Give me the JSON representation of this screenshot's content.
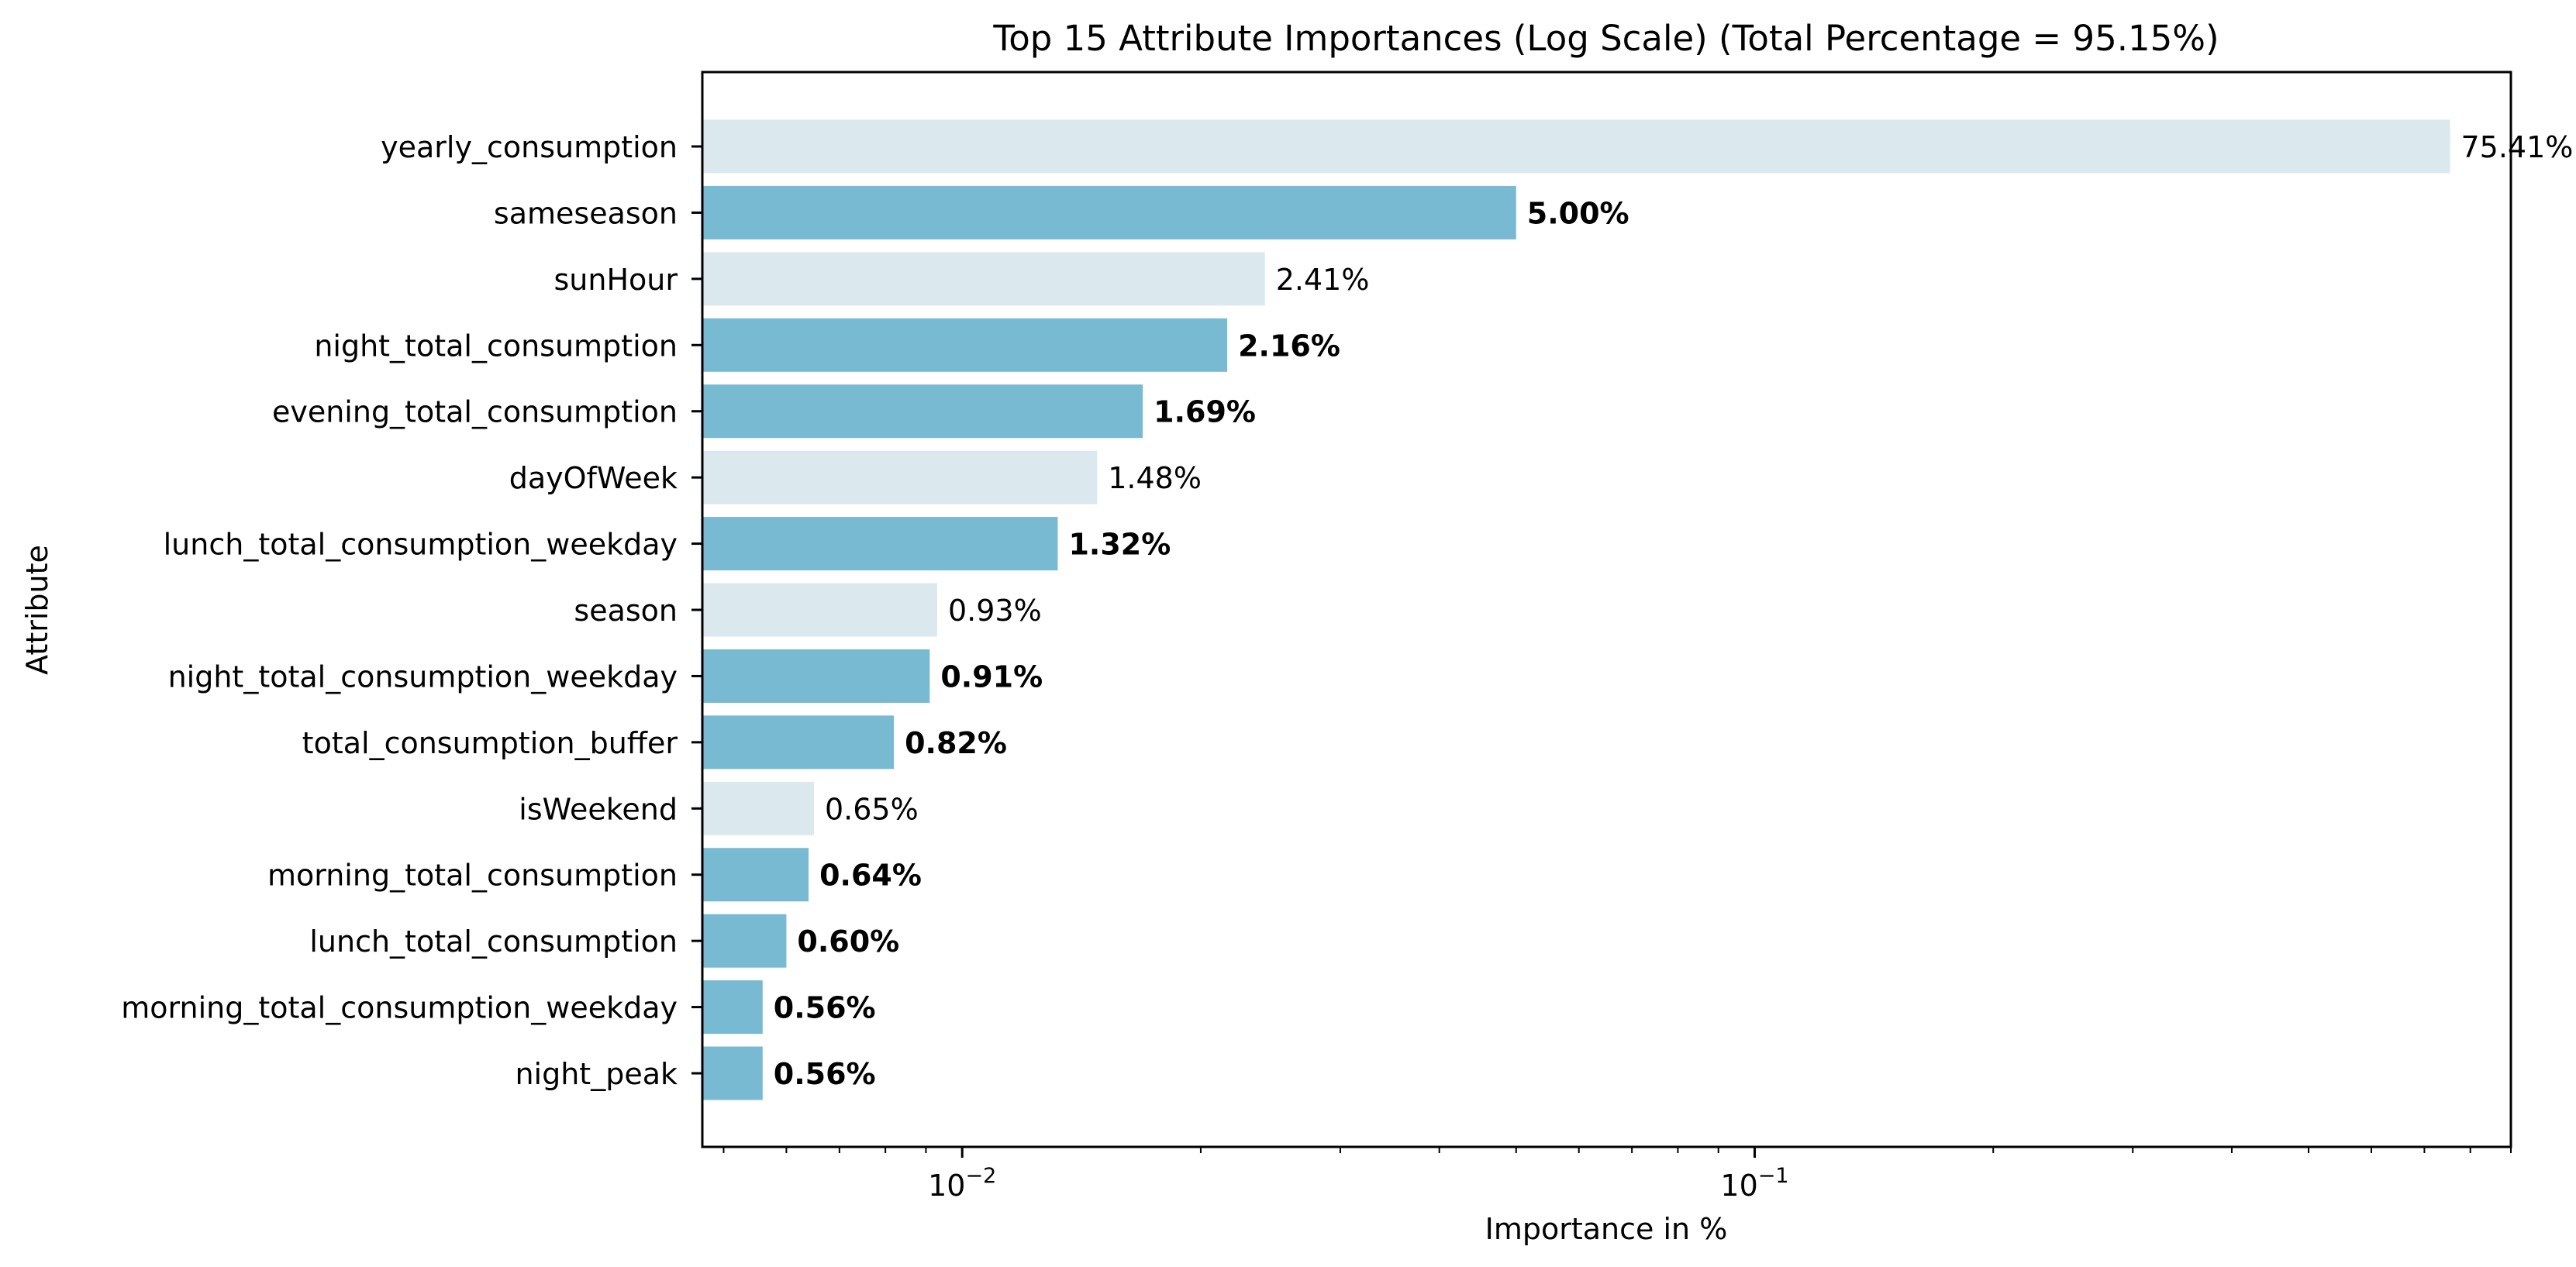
{
  "chart_data": {
    "type": "bar",
    "orientation": "horizontal",
    "title": "Top 15 Attribute Importances (Log Scale) (Total Percentage = 95.15%)",
    "xlabel": "Importance in %",
    "ylabel": "Attribute",
    "xscale": "log",
    "xlim": [
      0.0047,
      0.9
    ],
    "xticks": [
      {
        "value": 0.01,
        "label": "10−2"
      },
      {
        "value": 0.1,
        "label": "10−1"
      }
    ],
    "grid": false,
    "legend": "none",
    "colors": {
      "light": "#dbe9ef",
      "dark": "#78bad1",
      "frame": "#000000"
    },
    "bars": [
      {
        "label": "yearly_consumption",
        "value": 0.7541,
        "value_label": "75.41%",
        "style": "light"
      },
      {
        "label": "sameseason",
        "value": 0.05,
        "value_label": "5.00%",
        "style": "dark"
      },
      {
        "label": "sunHour",
        "value": 0.0241,
        "value_label": "2.41%",
        "style": "light"
      },
      {
        "label": "night_total_consumption",
        "value": 0.0216,
        "value_label": "2.16%",
        "style": "dark"
      },
      {
        "label": "evening_total_consumption",
        "value": 0.0169,
        "value_label": "1.69%",
        "style": "dark"
      },
      {
        "label": "dayOfWeek",
        "value": 0.0148,
        "value_label": "1.48%",
        "style": "light"
      },
      {
        "label": "lunch_total_consumption_weekday",
        "value": 0.0132,
        "value_label": "1.32%",
        "style": "dark"
      },
      {
        "label": "season",
        "value": 0.0093,
        "value_label": "0.93%",
        "style": "light"
      },
      {
        "label": "night_total_consumption_weekday",
        "value": 0.0091,
        "value_label": "0.91%",
        "style": "dark"
      },
      {
        "label": "total_consumption_buffer",
        "value": 0.0082,
        "value_label": "0.82%",
        "style": "dark"
      },
      {
        "label": "isWeekend",
        "value": 0.0065,
        "value_label": "0.65%",
        "style": "light"
      },
      {
        "label": "morning_total_consumption",
        "value": 0.0064,
        "value_label": "0.64%",
        "style": "dark"
      },
      {
        "label": "lunch_total_consumption",
        "value": 0.006,
        "value_label": "0.60%",
        "style": "dark"
      },
      {
        "label": "morning_total_consumption_weekday",
        "value": 0.0056,
        "value_label": "0.56%",
        "style": "dark"
      },
      {
        "label": "night_peak",
        "value": 0.0056,
        "value_label": "0.56%",
        "style": "dark"
      }
    ]
  }
}
